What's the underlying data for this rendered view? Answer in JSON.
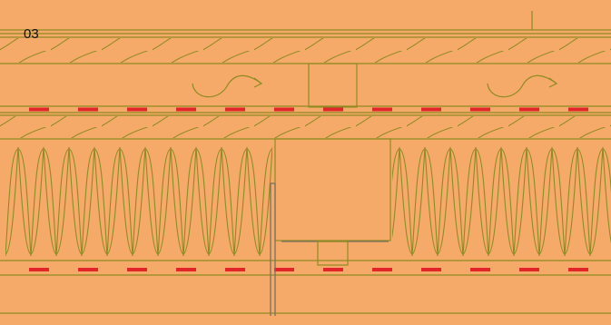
{
  "label": "03"
}
